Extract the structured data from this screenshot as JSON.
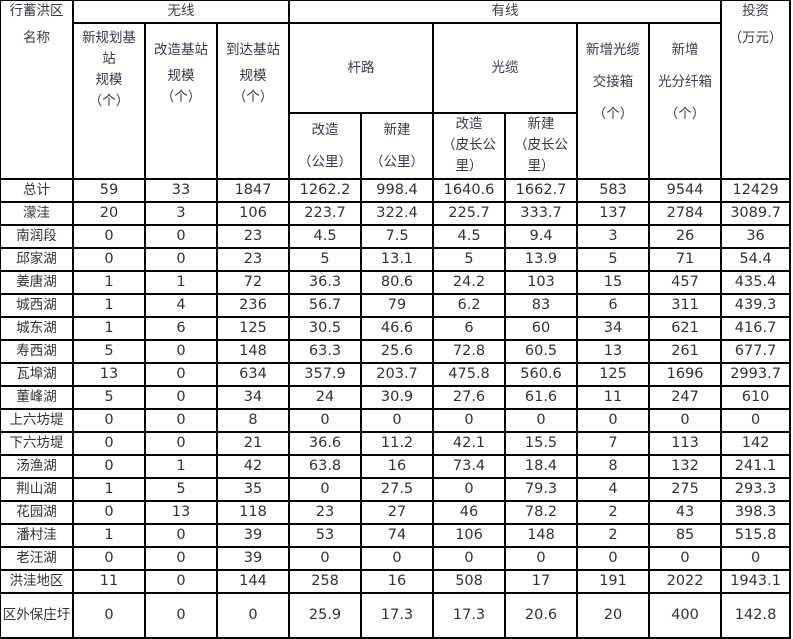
{
  "header": {
    "name_line1": "行蓄洪区",
    "name_line2": "名称",
    "wireless": "无线",
    "wired": "有线",
    "investment": "投资",
    "investment_unit": "（万元）",
    "new_station_l1": "新规划基",
    "new_station_l2": "站",
    "new_station_l3": "规模",
    "new_station_unit": "（个）",
    "rebuild_station_l1": "改造基站",
    "rebuild_station_l2": "规模",
    "rebuild_station_unit": "（个）",
    "reach_station_l1": "到达基站",
    "reach_station_l2": "规模",
    "reach_station_unit": "（个）",
    "pole_line": "杆路",
    "optical_cable": "光缆",
    "cabinet_l1": "新增光缆",
    "cabinet_l2": "交接箱",
    "cabinet_unit": "（个）",
    "splitter_l1": "新增",
    "splitter_l2": "光分纤箱",
    "splitter_unit": "（个）",
    "pole_rebuild": "改造",
    "pole_rebuild_unit": "（公里）",
    "pole_new": "新建",
    "pole_new_unit": "（公里）",
    "cable_rebuild": "改造",
    "cable_rebuild_unit": "（皮长公里）",
    "cable_new": "新建",
    "cable_new_unit": "（皮长公里）"
  },
  "rows": [
    [
      "总计",
      "59",
      "33",
      "1847",
      "1262.2",
      "998.4",
      "1640.6",
      "1662.7",
      "583",
      "9544",
      "12429"
    ],
    [
      "濛洼",
      "20",
      "3",
      "106",
      "223.7",
      "322.4",
      "225.7",
      "333.7",
      "137",
      "2784",
      "3089.7"
    ],
    [
      "南润段",
      "0",
      "0",
      "23",
      "4.5",
      "7.5",
      "4.5",
      "9.4",
      "3",
      "26",
      "36"
    ],
    [
      "邱家湖",
      "0",
      "0",
      "23",
      "5",
      "13.1",
      "5",
      "13.9",
      "5",
      "71",
      "54.4"
    ],
    [
      "姜唐湖",
      "1",
      "1",
      "72",
      "36.3",
      "80.6",
      "24.2",
      "103",
      "15",
      "457",
      "435.4"
    ],
    [
      "城西湖",
      "1",
      "4",
      "236",
      "56.7",
      "79",
      "6.2",
      "83",
      "6",
      "311",
      "439.3"
    ],
    [
      "城东湖",
      "1",
      "6",
      "125",
      "30.5",
      "46.6",
      "6",
      "60",
      "34",
      "621",
      "416.7"
    ],
    [
      "寿西湖",
      "5",
      "0",
      "148",
      "63.3",
      "25.6",
      "72.8",
      "60.5",
      "13",
      "261",
      "677.7"
    ],
    [
      "瓦埠湖",
      "13",
      "0",
      "634",
      "357.9",
      "203.7",
      "475.8",
      "560.6",
      "125",
      "1696",
      "2993.7"
    ],
    [
      "董峰湖",
      "5",
      "0",
      "34",
      "24",
      "30.9",
      "27.6",
      "61.6",
      "11",
      "247",
      "610"
    ],
    [
      "上六坊堤",
      "0",
      "0",
      "8",
      "0",
      "0",
      "0",
      "0",
      "0",
      "0",
      "0"
    ],
    [
      "下六坊堤",
      "0",
      "0",
      "21",
      "36.6",
      "11.2",
      "42.1",
      "15.5",
      "7",
      "113",
      "142"
    ],
    [
      "汤渔湖",
      "0",
      "1",
      "42",
      "63.8",
      "16",
      "73.4",
      "18.4",
      "8",
      "132",
      "241.1"
    ],
    [
      "荆山湖",
      "1",
      "5",
      "35",
      "0",
      "27.5",
      "0",
      "79.3",
      "4",
      "275",
      "293.3"
    ],
    [
      "花园湖",
      "0",
      "13",
      "118",
      "23",
      "27",
      "46",
      "78.2",
      "2",
      "43",
      "398.3"
    ],
    [
      "潘村洼",
      "1",
      "0",
      "39",
      "53",
      "74",
      "106",
      "148",
      "2",
      "85",
      "515.8"
    ],
    [
      "老汪湖",
      "0",
      "0",
      "39",
      "0",
      "0",
      "0",
      "0",
      "0",
      "0",
      "0"
    ],
    [
      "洪洼地区",
      "11",
      "0",
      "144",
      "258",
      "16",
      "508",
      "17",
      "191",
      "2022",
      "1943.1"
    ],
    [
      "区外保庄圩",
      "0",
      "0",
      "0",
      "25.9",
      "17.3",
      "17.3",
      "20.6",
      "20",
      "400",
      "142.8"
    ]
  ]
}
